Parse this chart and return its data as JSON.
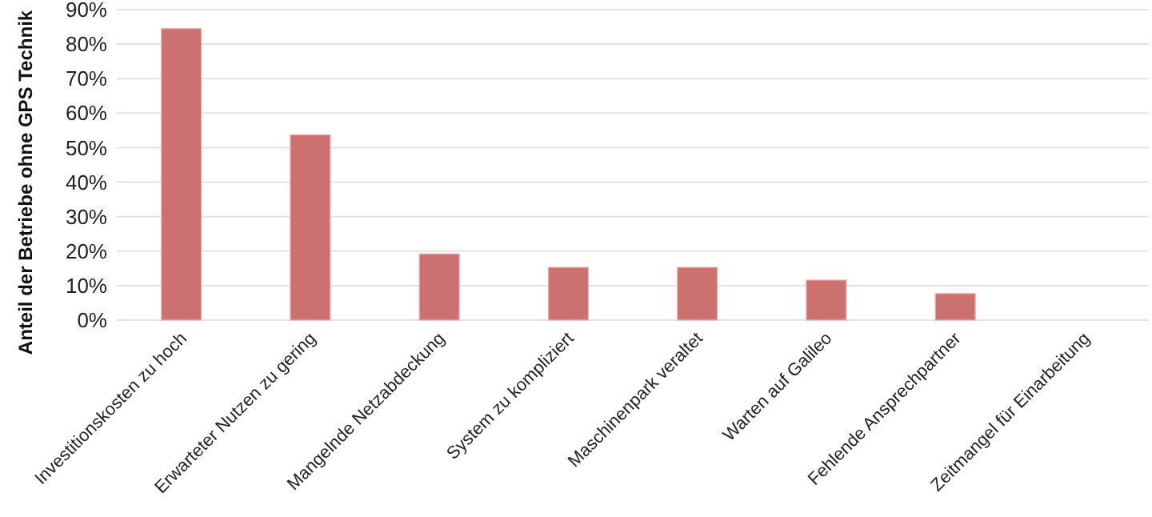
{
  "chart_data": {
    "type": "bar",
    "ylabel": "Anteil der Betriebe ohne GPS Technik",
    "categories": [
      "Investitionskosten zu hoch",
      "Erwarteter Nutzen zu gering",
      "Mangelnde Netzabdeckung",
      "System zu kompliziert",
      "Maschinenpark veraltet",
      "Warten auf Galileo",
      "Fehlende Ansprechpartner",
      "Zeitmangel für Einarbeitung"
    ],
    "values": [
      84.5,
      53.7,
      19.2,
      15.3,
      15.3,
      11.6,
      7.7,
      0
    ],
    "color": "#cc7070",
    "ylim": [
      0,
      90
    ],
    "yticks": [
      {
        "value": 0,
        "label": "0%"
      },
      {
        "value": 10,
        "label": "10%"
      },
      {
        "value": 20,
        "label": "20%"
      },
      {
        "value": 30,
        "label": "30%"
      },
      {
        "value": 40,
        "label": "40%"
      },
      {
        "value": 50,
        "label": "50%"
      },
      {
        "value": 60,
        "label": "60%"
      },
      {
        "value": 70,
        "label": "70%"
      },
      {
        "value": 80,
        "label": "80%"
      },
      {
        "value": 90,
        "label": "90%"
      }
    ],
    "grid": "y"
  }
}
